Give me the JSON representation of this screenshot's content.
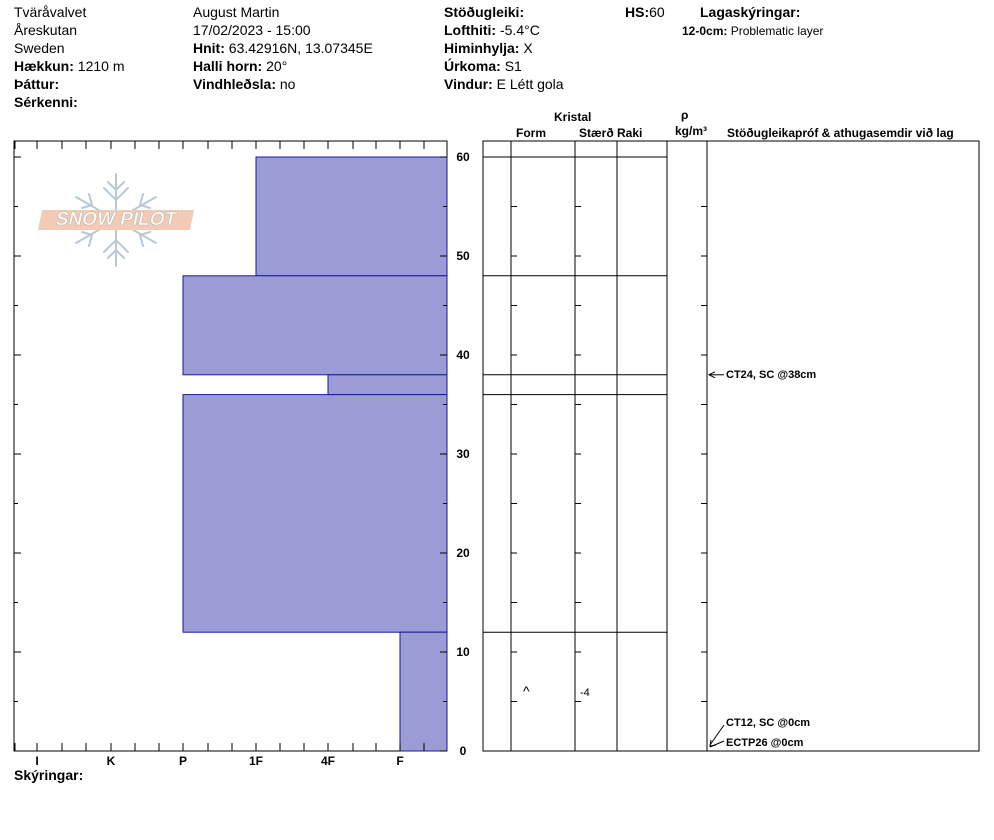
{
  "header": {
    "location": "Tväråvalvet",
    "area": "Åreskutan",
    "country": "Sweden",
    "elevation_label": "Hækkun:",
    "elevation_value": "1210 m",
    "aspect_label": "Þáttur:",
    "aspect_value": "",
    "features_label": "Sérkenni:",
    "features_value": "",
    "observer": "August  Martin",
    "datetime": "17/02/2023 - 15:00",
    "coords_label": "Hnit:",
    "coords_value": "63.42916N, 13.07345E",
    "slope_label": "Halli horn:",
    "slope_value": "20°",
    "wind_loading_label": "Vindhleðsla:",
    "wind_loading_value": "no",
    "stability_label": "Stöðugleiki:",
    "stability_value": "",
    "air_temp_label": "Lofthiti:",
    "air_temp_value": "-5.4°C",
    "sky_label": "Himinhylja:",
    "sky_value": "X",
    "precip_label": "Úrkoma:",
    "precip_value": "S1",
    "wind_label": "Vindur:",
    "wind_value": "E Létt gola",
    "hs_label": "HS:",
    "hs_value": "60",
    "legend_label": "Lagaskýringar:",
    "legend_range": "12-0cm:",
    "legend_text": "Problematic layer"
  },
  "logo": {
    "text": "SNOW PILOT"
  },
  "columns": {
    "kristal": "Kristal",
    "form": "Form",
    "staerd": "Stærð",
    "raki": "Raki",
    "rho": "ρ",
    "density_unit": "kg/m³",
    "tests": "Stöðugleikapróf & athugasemdir við lag"
  },
  "footer": {
    "comments_label": "Skýringar:"
  },
  "layer_cells": {
    "form_symbol": "^",
    "size_value": "-4"
  },
  "chart_data": {
    "type": "bar",
    "title": "",
    "xlabel": "",
    "ylabel": "",
    "ylim": [
      0,
      60
    ],
    "y_ticks": [
      0,
      10,
      20,
      30,
      40,
      50,
      60
    ],
    "hardness_scale": [
      "I",
      "K",
      "P",
      "1F",
      "4F",
      "F"
    ],
    "hardness_order_reading_left_to_right": [
      "I",
      "K",
      "P",
      "1F",
      "4F",
      "F"
    ],
    "layers": [
      {
        "top": 60,
        "bottom": 48,
        "hardness": "1F"
      },
      {
        "top": 48,
        "bottom": 38,
        "hardness": "P"
      },
      {
        "top": 38,
        "bottom": 36,
        "hardness": "4F"
      },
      {
        "top": 36,
        "bottom": 12,
        "hardness": "P"
      },
      {
        "top": 12,
        "bottom": 0,
        "hardness": "F"
      }
    ],
    "boundaries": [
      60,
      48,
      38,
      36,
      12
    ],
    "layer_annotations": [
      {
        "height": 6,
        "form": "^",
        "size": "-4"
      }
    ],
    "stability_tests": [
      {
        "depth": 38,
        "text": "CT24, SC @38cm"
      },
      {
        "depth": 0,
        "text": "CT12, SC @0cm"
      },
      {
        "depth": 0,
        "text": "ECTP26 @0cm"
      }
    ],
    "bar_color": "#9b9bd6",
    "bar_stroke": "#1a1a9a",
    "grid": false
  }
}
